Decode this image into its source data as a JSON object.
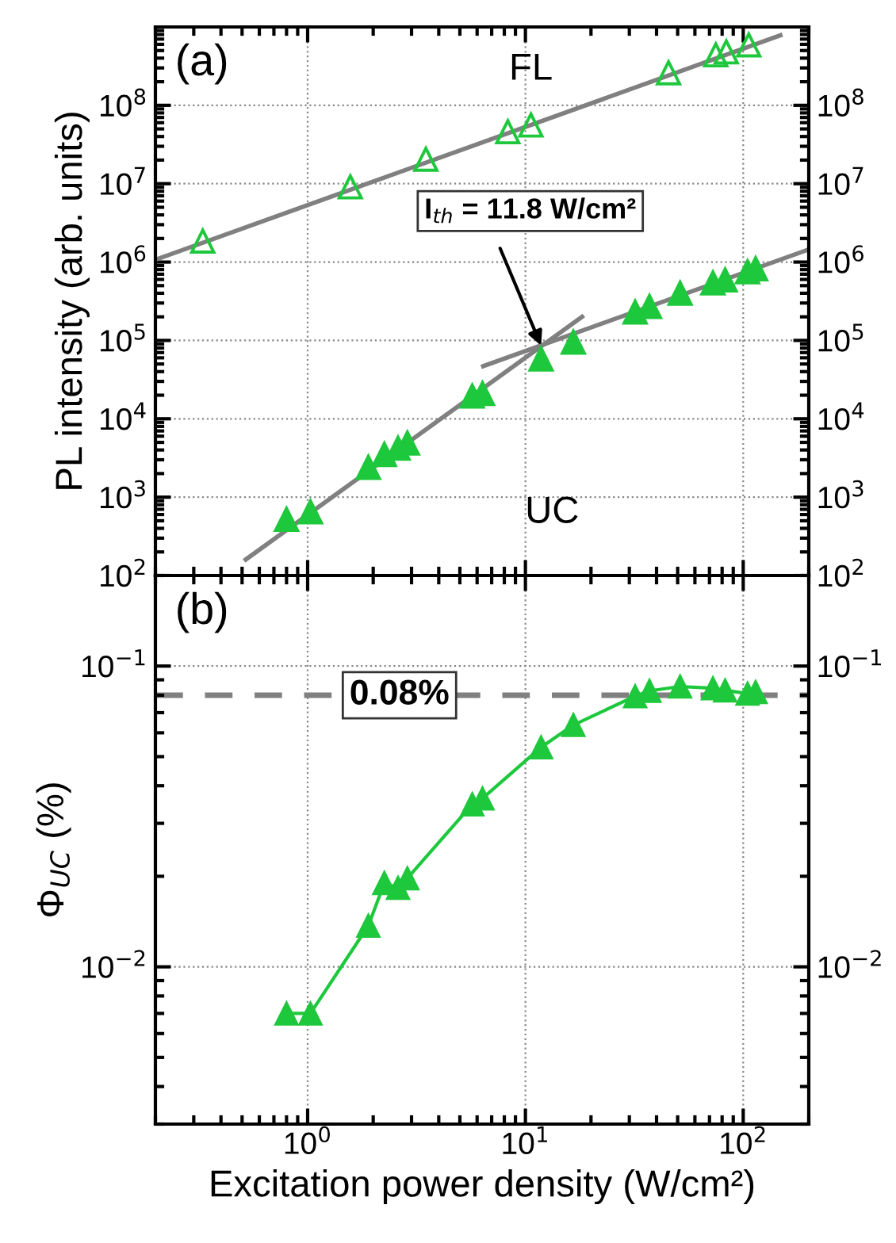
{
  "chart_data": [
    {
      "type": "scatter",
      "title": "(a)",
      "ylabel": "PL intensity (arb. units)",
      "log": "xy",
      "grid": true,
      "tick_labels": "y",
      "xlim": [
        0.2,
        200
      ],
      "xticks": [
        {
          "value": 1,
          "label": null
        },
        {
          "value": 10,
          "label": null
        },
        {
          "value": 100,
          "label": null
        }
      ],
      "ylim": [
        100,
        1000000000
      ],
      "yticks": [
        {
          "value": 100,
          "label": "10$^{2}$"
        },
        {
          "value": 1000,
          "label": "10$^{3}$"
        },
        {
          "value": 10000,
          "label": "10$^{4}$"
        },
        {
          "value": 100000,
          "label": "10$^{5}$"
        },
        {
          "value": 1000000,
          "label": "10$^{6}$"
        },
        {
          "value": 10000000,
          "label": "10$^{7}$"
        },
        {
          "value": 100000000,
          "label": "10$^{8}$"
        }
      ],
      "series": [
        {
          "name": "FL",
          "marker": "triangle-open",
          "color": "#1ec83c",
          "x": [
            0.33,
            1.57,
            3.49,
            8.3,
            10.6,
            45.4,
            74.8,
            83.6,
            106
          ],
          "values": [
            1850000,
            9100000,
            20500000,
            46000000,
            56000000,
            260000000,
            440000000,
            480000000,
            590000000
          ]
        },
        {
          "type": "line",
          "marker": "none",
          "color": "#808080",
          "x": [
            0.2,
            148
          ],
          "values": [
            1070000,
            780000000
          ]
        },
        {
          "name": "UC",
          "marker": "triangle",
          "color": "#1ec83c",
          "x": [
            0.8,
            1.03,
            1.9,
            2.25,
            2.6,
            2.87,
            5.7,
            6.35,
            11.8,
            16.6,
            31.9,
            37.1,
            51.3,
            72.6,
            82.6,
            104.7,
            114
          ],
          "values": [
            520,
            650,
            2400,
            3500,
            4200,
            4900,
            19500,
            21000,
            58000,
            95000,
            230000,
            270000,
            400000,
            540000,
            590000,
            750000,
            820000
          ]
        },
        {
          "type": "line",
          "marker": "none",
          "color": "#808080",
          "x": [
            0.52,
            18.2
          ],
          "values": [
            160,
            200000
          ]
        },
        {
          "type": "line",
          "marker": "none",
          "color": "#808080",
          "x": [
            6.4,
            200
          ],
          "values": [
            47000,
            1450000
          ]
        }
      ],
      "annotations": [
        {
          "text": "I$_{th}$ = 11.8 W/cm²",
          "x": 11.8,
          "y": 86000
        }
      ]
    },
    {
      "type": "line",
      "title": "(b)",
      "xlabel": "Excitation power density (W/cm²)",
      "ylabel": "Φ$_{UC}$ (%)",
      "log": "xy",
      "grid": true,
      "xlim": [
        0.2,
        200
      ],
      "xticks": [
        {
          "value": 1,
          "label": "10$^{0}$"
        },
        {
          "value": 10,
          "label": "10$^{1}$"
        },
        {
          "value": 100,
          "label": "10$^{2}$"
        }
      ],
      "ylim": [
        0.003,
        0.2
      ],
      "yticks": [
        {
          "value": 0.01,
          "label": "10$^{−2}$"
        },
        {
          "value": 0.1,
          "label": "10$^{−1}$"
        }
      ],
      "series": [
        {
          "marker": "triangle",
          "color": "#1ec83c",
          "x": [
            0.8,
            1.03,
            1.9,
            2.25,
            2.6,
            2.87,
            5.7,
            6.35,
            11.8,
            16.6,
            31.9,
            37.1,
            51.3,
            72.6,
            82.6,
            104.7,
            114
          ],
          "values": [
            0.007,
            0.007,
            0.0137,
            0.019,
            0.0183,
            0.0197,
            0.0347,
            0.0363,
            0.0537,
            0.0637,
            0.0794,
            0.0827,
            0.0855,
            0.0844,
            0.083,
            0.081,
            0.082
          ]
        }
      ],
      "ref_lines": [
        {
          "axis": "y",
          "value": 0.08,
          "label": "0.08%",
          "color": "#808080",
          "line_style": "dashed"
        }
      ]
    }
  ]
}
